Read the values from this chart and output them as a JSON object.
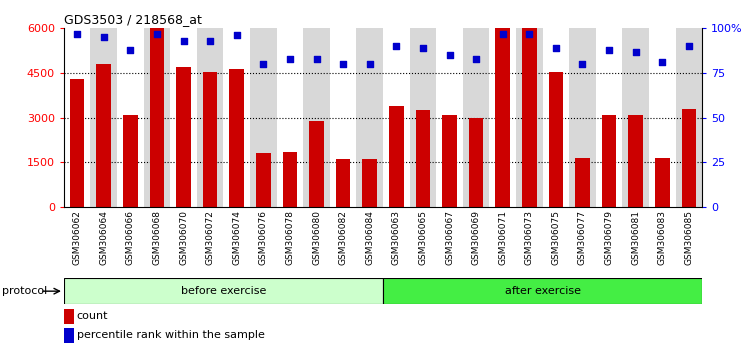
{
  "title": "GDS3503 / 218568_at",
  "categories": [
    "GSM306062",
    "GSM306064",
    "GSM306066",
    "GSM306068",
    "GSM306070",
    "GSM306072",
    "GSM306074",
    "GSM306076",
    "GSM306078",
    "GSM306080",
    "GSM306082",
    "GSM306084",
    "GSM306063",
    "GSM306065",
    "GSM306067",
    "GSM306069",
    "GSM306071",
    "GSM306073",
    "GSM306075",
    "GSM306077",
    "GSM306079",
    "GSM306081",
    "GSM306083",
    "GSM306085"
  ],
  "counts": [
    4300,
    4800,
    3100,
    6000,
    4700,
    4550,
    4650,
    1800,
    1850,
    2900,
    1600,
    1600,
    3400,
    3250,
    3100,
    2980,
    6000,
    6000,
    4550,
    1650,
    3100,
    3100,
    1650,
    3300
  ],
  "percentile_ranks": [
    97,
    95,
    88,
    97,
    93,
    93,
    96,
    80,
    83,
    83,
    80,
    80,
    90,
    89,
    85,
    83,
    97,
    97,
    89,
    80,
    88,
    87,
    81,
    90
  ],
  "bar_color": "#cc0000",
  "dot_color": "#0000cc",
  "before_count": 12,
  "after_count": 12,
  "before_label": "before exercise",
  "after_label": "after exercise",
  "protocol_label": "protocol",
  "before_color": "#ccffcc",
  "after_color": "#44ee44",
  "ylim_left": [
    0,
    6000
  ],
  "ylim_right": [
    0,
    100
  ],
  "yticks_left": [
    0,
    1500,
    3000,
    4500,
    6000
  ],
  "yticks_right": [
    0,
    25,
    50,
    75,
    100
  ],
  "ytick_labels_left": [
    "0",
    "1500",
    "3000",
    "4500",
    "6000"
  ],
  "ytick_labels_right": [
    "0",
    "25",
    "50",
    "75",
    "100%"
  ],
  "legend_count_label": "count",
  "legend_percentile_label": "percentile rank within the sample",
  "col_bg_odd": "#d8d8d8",
  "col_bg_even": "#ffffff"
}
